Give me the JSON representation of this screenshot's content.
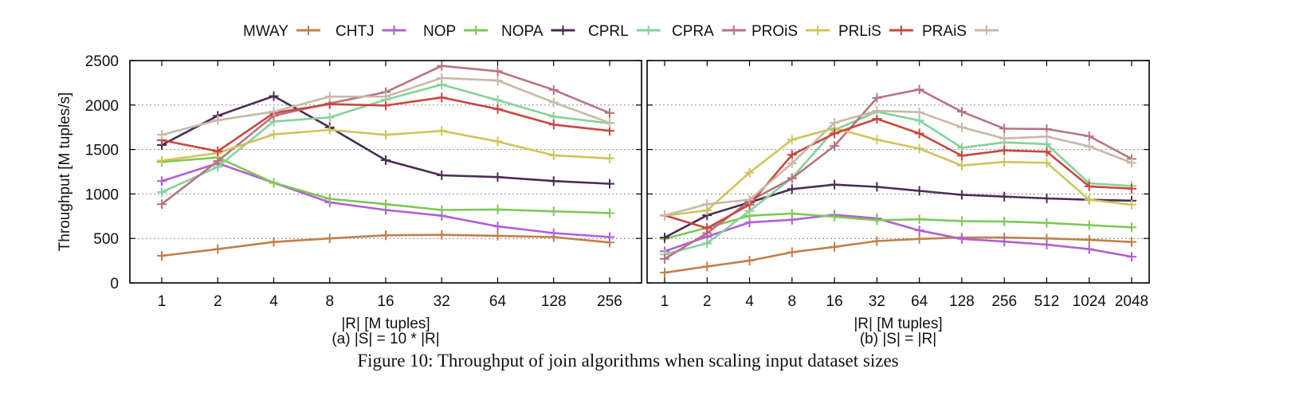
{
  "figure_caption": "Figure 10: Throughput of join algorithms when scaling input dataset sizes",
  "legend": {
    "placement": "top",
    "entries": [
      {
        "name": "MWAY",
        "color": "#c0804a"
      },
      {
        "name": "CHTJ",
        "color": "#b25fd6"
      },
      {
        "name": "NOP",
        "color": "#7cc857"
      },
      {
        "name": "NOPA",
        "color": "#4a2d55"
      },
      {
        "name": "CPRL",
        "color": "#86d29a"
      },
      {
        "name": "CPRA",
        "color": "#b87382"
      },
      {
        "name": "PROiS",
        "color": "#cfc45a"
      },
      {
        "name": "PRLiS",
        "color": "#c8473e"
      },
      {
        "name": "PRAiS",
        "color": "#c9b8a8"
      }
    ]
  },
  "chart_data": [
    {
      "type": "line",
      "subtitle": "(a) |S| = 10 * |R|",
      "xlabel": "|R| [M tuples]",
      "ylabel": "Throughput [M tuples/s]",
      "categories": [
        "1",
        "2",
        "4",
        "8",
        "16",
        "32",
        "64",
        "128",
        "256"
      ],
      "ylim": [
        0,
        2500
      ],
      "yticks": [
        "0",
        "500",
        "1000",
        "1500",
        "2000",
        "2500"
      ],
      "grid": "horizontal dotted",
      "series": [
        {
          "name": "MWAY",
          "values": [
            305,
            380,
            460,
            500,
            535,
            540,
            530,
            515,
            455
          ]
        },
        {
          "name": "CHTJ",
          "values": [
            1145,
            1345,
            1125,
            905,
            820,
            755,
            635,
            560,
            515
          ]
        },
        {
          "name": "NOP",
          "values": [
            1360,
            1410,
            1125,
            945,
            885,
            820,
            825,
            805,
            785
          ]
        },
        {
          "name": "NOPA",
          "values": [
            1550,
            1880,
            2100,
            1750,
            1380,
            1210,
            1190,
            1145,
            1115
          ]
        },
        {
          "name": "CPRL",
          "values": [
            1020,
            1305,
            1815,
            1860,
            2060,
            2230,
            2055,
            1870,
            1795
          ]
        },
        {
          "name": "CPRA",
          "values": [
            885,
            1370,
            1880,
            2020,
            2145,
            2440,
            2380,
            2170,
            1910
          ]
        },
        {
          "name": "PROiS",
          "values": [
            1375,
            1460,
            1670,
            1720,
            1665,
            1710,
            1590,
            1435,
            1400
          ]
        },
        {
          "name": "PRLiS",
          "values": [
            1605,
            1480,
            1910,
            2010,
            1995,
            2085,
            1955,
            1780,
            1710
          ]
        },
        {
          "name": "PRAiS",
          "values": [
            1665,
            1830,
            1925,
            2095,
            2095,
            2305,
            2275,
            2030,
            1800
          ]
        }
      ]
    },
    {
      "type": "line",
      "subtitle": "(b) |S| = |R|",
      "xlabel": "|R| [M tuples]",
      "ylabel": "",
      "categories": [
        "1",
        "2",
        "4",
        "8",
        "16",
        "32",
        "64",
        "128",
        "256",
        "512",
        "1024",
        "2048"
      ],
      "ylim": [
        0,
        2500
      ],
      "grid": "horizontal dotted",
      "series": [
        {
          "name": "MWAY",
          "values": [
            115,
            185,
            250,
            345,
            405,
            470,
            495,
            510,
            510,
            500,
            485,
            460
          ]
        },
        {
          "name": "CHTJ",
          "values": [
            355,
            520,
            680,
            710,
            765,
            725,
            590,
            495,
            465,
            430,
            380,
            295
          ]
        },
        {
          "name": "NOP",
          "values": [
            495,
            620,
            755,
            780,
            745,
            705,
            715,
            695,
            690,
            675,
            650,
            625
          ]
        },
        {
          "name": "NOPA",
          "values": [
            510,
            760,
            905,
            1055,
            1105,
            1080,
            1035,
            990,
            970,
            950,
            935,
            925
          ]
        },
        {
          "name": "CPRL",
          "values": [
            320,
            445,
            810,
            1180,
            1720,
            1925,
            1825,
            1520,
            1580,
            1560,
            1120,
            1090
          ]
        },
        {
          "name": "CPRA",
          "values": [
            270,
            560,
            920,
            1175,
            1540,
            2080,
            2175,
            1925,
            1735,
            1730,
            1650,
            1395
          ]
        },
        {
          "name": "PROiS",
          "values": [
            755,
            815,
            1240,
            1610,
            1740,
            1610,
            1510,
            1320,
            1360,
            1350,
            935,
            880
          ]
        },
        {
          "name": "PRLiS",
          "values": [
            760,
            615,
            880,
            1440,
            1680,
            1845,
            1680,
            1430,
            1490,
            1475,
            1085,
            1060
          ]
        },
        {
          "name": "PRAiS",
          "values": [
            760,
            885,
            935,
            1345,
            1800,
            1935,
            1920,
            1750,
            1625,
            1645,
            1535,
            1350
          ]
        }
      ]
    }
  ]
}
